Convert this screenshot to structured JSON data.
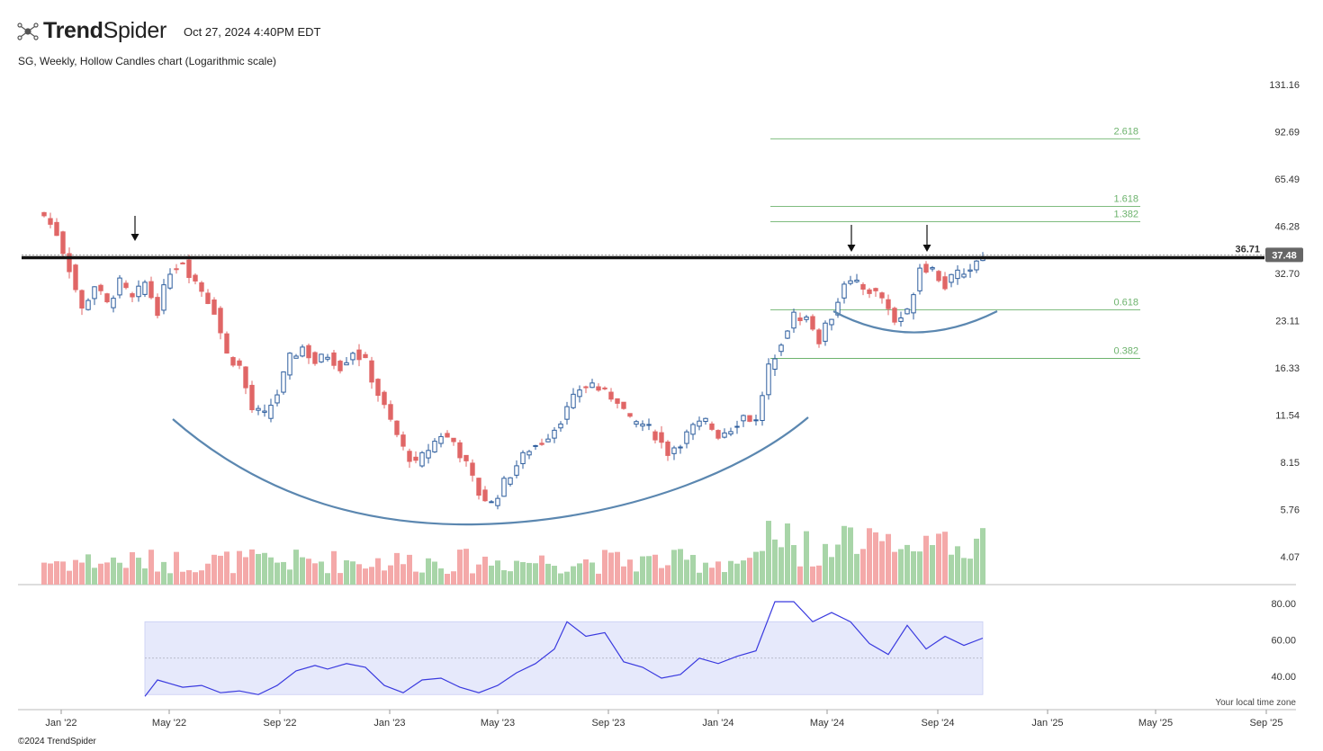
{
  "header": {
    "brand_bold": "Trend",
    "brand_regular": "Spider",
    "timestamp": "Oct 27, 2024 4:40PM EDT",
    "subtitle": "SG, Weekly, Hollow Candles chart (Logarithmic scale)",
    "footer": "©2024 TrendSpider",
    "timezone_note": "Your local time zone"
  },
  "colors": {
    "up": "#2e5e9e",
    "down": "#e06666",
    "vol_up": "#a8d5a8",
    "vol_down": "#f4a9a9",
    "rsi_line": "#3a3adf",
    "rsi_band": "#e6e9fb",
    "fib": "#6db36d",
    "arc": "#5b87b0"
  },
  "chart_data": {
    "type": "candlestick",
    "ticker": "SG",
    "interval": "Weekly",
    "scale": "log",
    "y_ticks": [
      4.07,
      5.76,
      8.15,
      11.54,
      16.33,
      23.11,
      32.7,
      46.28,
      65.49,
      92.69,
      131.16
    ],
    "x_ticks": [
      "Jan '22",
      "May '22",
      "Sep '22",
      "Jan '23",
      "May '23",
      "Sep '23",
      "Jan '24",
      "May '24",
      "Sep '24",
      "Jan '25",
      "May '25",
      "Sep '25"
    ],
    "horizontal_level": {
      "value": 36.71,
      "label": "36.71"
    },
    "last_price": {
      "value": 37.48,
      "label": "37.48"
    },
    "fib_levels": [
      {
        "label": "2.618",
        "value": 88.0
      },
      {
        "label": "1.618",
        "value": 53.5
      },
      {
        "label": "1.382",
        "value": 47.8
      },
      {
        "label": "0.618",
        "value": 25.0
      },
      {
        "label": "0.382",
        "value": 17.5
      }
    ],
    "close_points": [
      [
        "2021-12-13",
        50.0
      ],
      [
        "2021-12-27",
        44.0
      ],
      [
        "2022-01-10",
        34.0
      ],
      [
        "2022-01-24",
        25.0
      ],
      [
        "2022-02-07",
        30.0
      ],
      [
        "2022-02-21",
        26.0
      ],
      [
        "2022-03-07",
        30.5
      ],
      [
        "2022-03-21",
        27.0
      ],
      [
        "2022-04-04",
        30.5
      ],
      [
        "2022-04-18",
        25.0
      ],
      [
        "2022-05-02",
        33.5
      ],
      [
        "2022-05-16",
        36.0
      ],
      [
        "2022-05-23",
        33.0
      ],
      [
        "2022-06-06",
        29.0
      ],
      [
        "2022-06-20",
        25.0
      ],
      [
        "2022-07-04",
        18.0
      ],
      [
        "2022-07-18",
        16.5
      ],
      [
        "2022-08-01",
        12.0
      ],
      [
        "2022-08-15",
        11.5
      ],
      [
        "2022-08-29",
        13.5
      ],
      [
        "2022-09-12",
        17.5
      ],
      [
        "2022-09-26",
        19.0
      ],
      [
        "2022-10-10",
        17.0
      ],
      [
        "2022-10-24",
        18.0
      ],
      [
        "2022-11-07",
        16.5
      ],
      [
        "2022-11-21",
        18.5
      ],
      [
        "2022-12-05",
        17.0
      ],
      [
        "2022-12-19",
        13.5
      ],
      [
        "2023-01-02",
        11.0
      ],
      [
        "2023-01-16",
        9.0
      ],
      [
        "2023-01-30",
        8.0
      ],
      [
        "2023-02-13",
        9.0
      ],
      [
        "2023-02-27",
        10.0
      ],
      [
        "2023-03-13",
        9.5
      ],
      [
        "2023-03-27",
        8.0
      ],
      [
        "2023-04-10",
        6.5
      ],
      [
        "2023-04-24",
        6.0
      ],
      [
        "2023-05-08",
        7.0
      ],
      [
        "2023-05-22",
        8.0
      ],
      [
        "2023-06-05",
        9.0
      ],
      [
        "2023-06-19",
        9.5
      ],
      [
        "2023-07-03",
        10.5
      ],
      [
        "2023-07-17",
        12.0
      ],
      [
        "2023-07-31",
        14.0
      ],
      [
        "2023-08-14",
        14.5
      ],
      [
        "2023-08-28",
        13.5
      ],
      [
        "2023-09-11",
        13.0
      ],
      [
        "2023-09-25",
        11.0
      ],
      [
        "2023-10-09",
        10.8
      ],
      [
        "2023-10-23",
        10.0
      ],
      [
        "2023-11-06",
        8.8
      ],
      [
        "2023-11-20",
        9.5
      ],
      [
        "2023-12-04",
        10.5
      ],
      [
        "2023-12-18",
        11.0
      ],
      [
        "2024-01-01",
        10.0
      ],
      [
        "2024-01-15",
        10.5
      ],
      [
        "2024-01-29",
        11.5
      ],
      [
        "2024-02-12",
        11.0
      ],
      [
        "2024-02-26",
        16.5
      ],
      [
        "2024-03-11",
        20.0
      ],
      [
        "2024-03-25",
        24.0
      ],
      [
        "2024-04-08",
        23.5
      ],
      [
        "2024-04-22",
        20.0
      ],
      [
        "2024-05-06",
        24.0
      ],
      [
        "2024-05-20",
        31.0
      ],
      [
        "2024-06-03",
        30.0
      ],
      [
        "2024-06-17",
        29.0
      ],
      [
        "2024-07-01",
        27.5
      ],
      [
        "2024-07-15",
        23.0
      ],
      [
        "2024-07-29",
        24.5
      ],
      [
        "2024-08-12",
        34.5
      ],
      [
        "2024-08-26",
        34.0
      ],
      [
        "2024-09-09",
        30.0
      ],
      [
        "2024-09-23",
        32.5
      ],
      [
        "2024-10-07",
        34.0
      ],
      [
        "2024-10-21",
        37.48
      ]
    ],
    "volume_panel": {
      "type": "bar",
      "note": "relative weekly volume, green up / red down"
    },
    "rsi_panel": {
      "type": "line",
      "y_ticks": [
        40.0,
        60.0,
        80.0
      ],
      "band": [
        30,
        70
      ],
      "mid": 50,
      "points": [
        [
          "2022-04-04",
          29
        ],
        [
          "2022-04-18",
          38
        ],
        [
          "2022-05-02",
          36
        ],
        [
          "2022-05-16",
          34
        ],
        [
          "2022-06-06",
          35
        ],
        [
          "2022-06-27",
          31
        ],
        [
          "2022-07-18",
          32
        ],
        [
          "2022-08-08",
          30
        ],
        [
          "2022-08-29",
          35
        ],
        [
          "2022-09-19",
          43
        ],
        [
          "2022-10-10",
          46
        ],
        [
          "2022-10-24",
          44
        ],
        [
          "2022-11-14",
          47
        ],
        [
          "2022-12-05",
          45
        ],
        [
          "2022-12-26",
          35
        ],
        [
          "2023-01-16",
          31
        ],
        [
          "2023-02-06",
          38
        ],
        [
          "2023-02-27",
          39
        ],
        [
          "2023-03-20",
          34
        ],
        [
          "2023-04-10",
          31
        ],
        [
          "2023-05-01",
          35
        ],
        [
          "2023-05-22",
          42
        ],
        [
          "2023-06-12",
          47
        ],
        [
          "2023-07-03",
          55
        ],
        [
          "2023-07-17",
          70
        ],
        [
          "2023-08-07",
          62
        ],
        [
          "2023-08-28",
          64
        ],
        [
          "2023-09-18",
          48
        ],
        [
          "2023-10-09",
          45
        ],
        [
          "2023-10-30",
          39
        ],
        [
          "2023-11-20",
          41
        ],
        [
          "2023-12-11",
          50
        ],
        [
          "2024-01-01",
          47
        ],
        [
          "2024-01-22",
          51
        ],
        [
          "2024-02-12",
          54
        ],
        [
          "2024-03-04",
          81
        ],
        [
          "2024-03-25",
          81
        ],
        [
          "2024-04-15",
          70
        ],
        [
          "2024-05-06",
          75
        ],
        [
          "2024-05-27",
          70
        ],
        [
          "2024-06-17",
          58
        ],
        [
          "2024-07-08",
          52
        ],
        [
          "2024-07-29",
          68
        ],
        [
          "2024-08-19",
          55
        ],
        [
          "2024-09-09",
          62
        ],
        [
          "2024-09-30",
          57
        ],
        [
          "2024-10-21",
          61
        ]
      ]
    }
  }
}
